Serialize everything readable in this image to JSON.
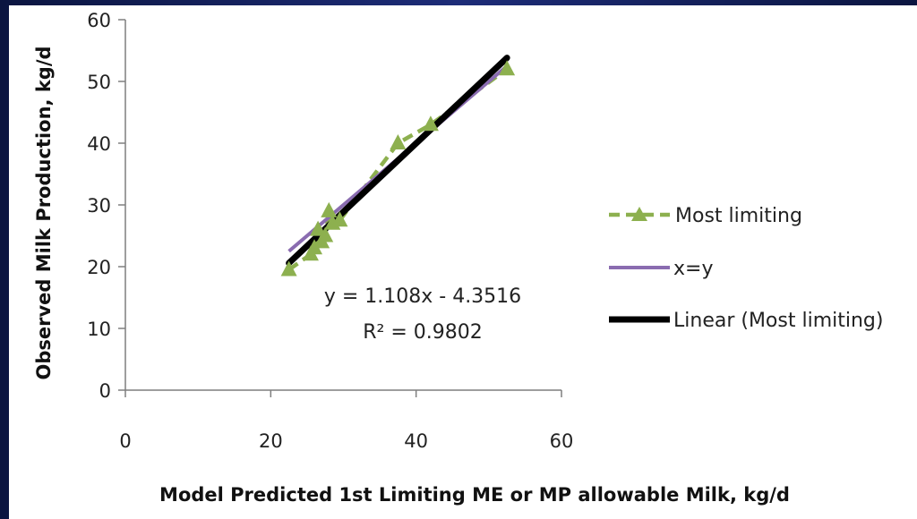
{
  "chart_data": {
    "type": "scatter",
    "xlabel": "Model Predicted 1st Limiting ME or MP allowable Milk, kg/d",
    "ylabel": "Observed Milk Production, kg/d",
    "xlim": [
      0,
      60
    ],
    "ylim": [
      0,
      60
    ],
    "xticks": [
      0,
      20,
      40,
      60
    ],
    "yticks": [
      0,
      10,
      20,
      30,
      40,
      50,
      60
    ],
    "grid": false,
    "legend_position": "right",
    "series": [
      {
        "name": "Most limiting",
        "style": "dashed line with triangle markers",
        "color": "#8db04f",
        "points": [
          [
            22.5,
            19.5
          ],
          [
            25.5,
            22
          ],
          [
            26,
            23
          ],
          [
            26.5,
            26
          ],
          [
            27,
            24
          ],
          [
            27.5,
            25
          ],
          [
            28,
            29
          ],
          [
            28.5,
            27
          ],
          [
            29.5,
            27.5
          ],
          [
            37.5,
            40
          ],
          [
            42,
            43
          ],
          [
            52.5,
            52
          ]
        ]
      },
      {
        "name": "x=y",
        "style": "solid line",
        "color": "#8a6cb0",
        "points": [
          [
            22.5,
            22.5
          ],
          [
            52.5,
            52.5
          ]
        ]
      },
      {
        "name": "Linear (Most limiting)",
        "style": "thick solid line",
        "color": "#000000",
        "points": [
          [
            22.5,
            20.58
          ],
          [
            52.5,
            53.82
          ]
        ]
      }
    ],
    "annotations": {
      "equation": "y = 1.108x - 4.3516",
      "r_squared": "R² = 0.9802"
    }
  }
}
